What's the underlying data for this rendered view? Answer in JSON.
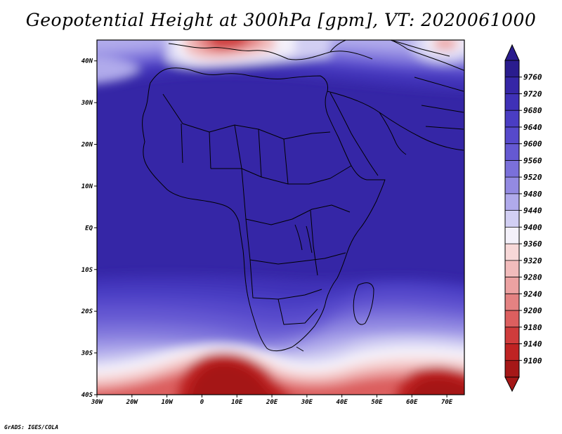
{
  "title": "Geopotential Height at 300hPa [gpm], VT: 2020061000",
  "footer": "GrADS: IGES/COLA",
  "map": {
    "lon_range": [
      -30,
      75
    ],
    "lat_range": [
      -40,
      45
    ],
    "lon_ticks": [
      {
        "value": -30,
        "label": "30W"
      },
      {
        "value": -20,
        "label": "20W"
      },
      {
        "value": -10,
        "label": "10W"
      },
      {
        "value": 0,
        "label": "0"
      },
      {
        "value": 10,
        "label": "10E"
      },
      {
        "value": 20,
        "label": "20E"
      },
      {
        "value": 30,
        "label": "30E"
      },
      {
        "value": 40,
        "label": "40E"
      },
      {
        "value": 50,
        "label": "50E"
      },
      {
        "value": 60,
        "label": "60E"
      },
      {
        "value": 70,
        "label": "70E"
      }
    ],
    "lat_ticks": [
      {
        "value": 40,
        "label": "40N"
      },
      {
        "value": 30,
        "label": "30N"
      },
      {
        "value": 20,
        "label": "20N"
      },
      {
        "value": 10,
        "label": "10N"
      },
      {
        "value": 0,
        "label": "EQ"
      },
      {
        "value": -10,
        "label": "10S"
      },
      {
        "value": -20,
        "label": "20S"
      },
      {
        "value": -30,
        "label": "30S"
      },
      {
        "value": -40,
        "label": "40S"
      }
    ]
  },
  "colorbar": {
    "levels": [
      "9760",
      "9720",
      "9680",
      "9640",
      "9600",
      "9560",
      "9520",
      "9480",
      "9440",
      "9400",
      "9360",
      "9320",
      "9280",
      "9240",
      "9200",
      "9180",
      "9140",
      "9100"
    ],
    "colors": [
      "#2a1c8e",
      "#3526a6",
      "#3f31b7",
      "#4a3dc3",
      "#5649cb",
      "#6559d2",
      "#7a70da",
      "#938ae2",
      "#b0aaeb",
      "#d2cff3",
      "#f4f1fa",
      "#f7d8d8",
      "#f2bcbc",
      "#eca2a2",
      "#e48282",
      "#dc5f5f",
      "#cf3c3c",
      "#bf2323",
      "#a51717"
    ]
  }
}
